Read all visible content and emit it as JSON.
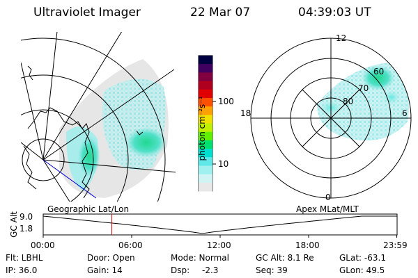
{
  "header": {
    "instrument": "Ultraviolet Imager",
    "date": "22 Mar 07",
    "time": "04:39:03 UT"
  },
  "colorbar": {
    "label": "photon cm⁻²s⁻¹",
    "ticks": [
      "100",
      "10"
    ],
    "colors": [
      "#000040",
      "#400060",
      "#800040",
      "#b00020",
      "#e00000",
      "#ff5000",
      "#ffa000",
      "#f0e000",
      "#c0f000",
      "#60f000",
      "#00e070",
      "#00e0d0",
      "#60e8e8",
      "#a0f0f0",
      "#d0f4f4",
      "#e8e8e8"
    ]
  },
  "polar_labels": {
    "mlt": [
      "12",
      "18",
      "6",
      "0"
    ],
    "mlat": [
      "60",
      "70",
      "80"
    ]
  },
  "panel_labels": {
    "left": "Geographic Lat/Lon",
    "right": "Apex MLat/MLT"
  },
  "altitude_plot": {
    "ylabel": "GC Alt",
    "yticks": [
      "9.0",
      "1.8"
    ],
    "xticks": [
      "00:00",
      "06:00",
      "12:00",
      "18:00",
      "23:59"
    ],
    "marker_hours": 4.65
  },
  "status": {
    "flt": "Flt: LBHL",
    "ip": "IP: 36.0",
    "door": "Door: Open",
    "gain": "Gain: 14",
    "mode": "Mode: Normal",
    "dsp": "Dsp:",
    "dsp_val": "-2.3",
    "gcalt": "GC Alt: 8.1 Re",
    "seq": "Seq: 39",
    "glat": "GLat: -63.1",
    "glon": "GLon:  49.5"
  }
}
